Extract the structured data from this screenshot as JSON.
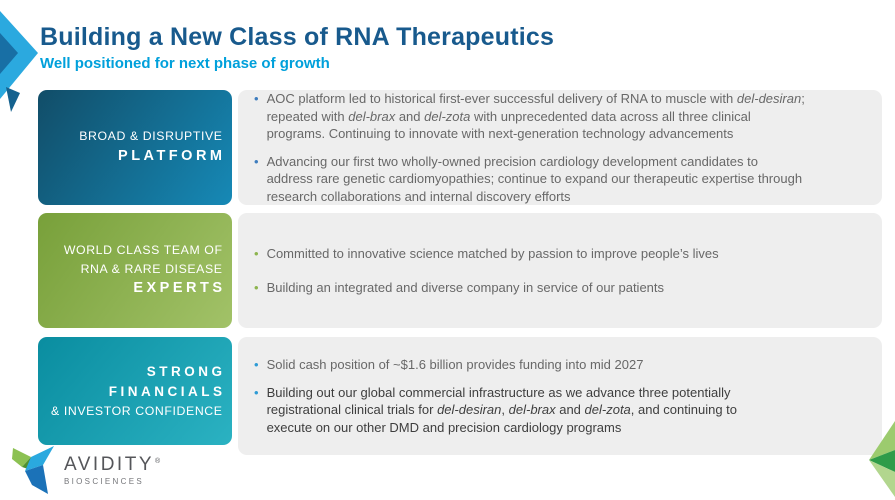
{
  "header": {
    "title": "Building a New Class of RNA Therapeutics",
    "subtitle": "Well positioned for next phase of growth"
  },
  "rows": [
    {
      "label_lines": [
        "BROAD & DISRUPTIVE",
        "PLATFORM"
      ],
      "bullets": [
        {
          "segments": [
            {
              "t": "AOC platform led to historical first-ever successful delivery of RNA to muscle with "
            },
            {
              "t": "del-desiran",
              "i": true
            },
            {
              "t": ";"
            },
            {
              "br": true
            },
            {
              "t": "repeated with "
            },
            {
              "t": "del-brax",
              "i": true
            },
            {
              "t": " and "
            },
            {
              "t": "del-zota",
              "i": true
            },
            {
              "t": " with unprecedented data across all three clinical"
            },
            {
              "br": true
            },
            {
              "t": "programs. Continuing to innovate with next-generation technology advancements"
            }
          ]
        },
        {
          "segments": [
            {
              "t": "Advancing our first two wholly-owned precision cardiology development candidates to"
            },
            {
              "br": true
            },
            {
              "t": "address rare genetic cardiomyopathies; continue to expand our therapeutic expertise through"
            },
            {
              "br": true
            },
            {
              "t": "research collaborations and internal discovery efforts"
            }
          ]
        }
      ]
    },
    {
      "label_lines": [
        "WORLD CLASS TEAM OF",
        "RNA & RARE DISEASE",
        "EXPERTS"
      ],
      "bullets": [
        {
          "segments": [
            {
              "t": "Committed to innovative science matched by passion to improve people’s lives"
            }
          ]
        },
        {
          "segments": [
            {
              "t": "Building an integrated and diverse company in service of our patients"
            }
          ]
        }
      ]
    },
    {
      "label_lines": [
        "STRONG",
        "FINANCIALS",
        "& INVESTOR CONFIDENCE"
      ],
      "bullets": [
        {
          "segments": [
            {
              "t": "Solid cash position of ~$1.6 billion provides funding into mid 2027"
            }
          ]
        },
        {
          "emphasis": true,
          "segments": [
            {
              "t": "Building out our global commercial infrastructure as we advance three potentially"
            },
            {
              "br": true
            },
            {
              "t": "registrational clinical trials for "
            },
            {
              "t": "del-desiran",
              "i": true
            },
            {
              "t": ", "
            },
            {
              "t": "del-brax",
              "i": true
            },
            {
              "t": " and "
            },
            {
              "t": "del-zota",
              "i": true
            },
            {
              "t": ", and continuing to"
            },
            {
              "br": true
            },
            {
              "t": "execute on our other DMD and precision cardiology programs"
            }
          ]
        }
      ]
    }
  ],
  "footer": {
    "brand": "AVIDITY",
    "trademark": "®",
    "sub_brand": "BIOSCIENCES"
  },
  "icons": {
    "bullet_glyph": "•",
    "top_left_decoration": "folded-ribbon-chevron",
    "bottom_right_decoration": "green-ribbon-chevron",
    "logo_mark": "avidity-ribbon-mark"
  },
  "colors": {
    "title": "#185A8D",
    "subtitle": "#00A0DB",
    "panel_bg": "#EEEEEE",
    "body_text": "#686868",
    "emphasis_text": "#3E3E3E",
    "box_platform_gradient": [
      "#114D68",
      "#1689B6"
    ],
    "box_experts_gradient": [
      "#78A03A",
      "#A2C268"
    ],
    "box_financials_gradient": [
      "#0A8DA0",
      "#2BB2C2"
    ],
    "bullet_accents": [
      "#3E7DBE",
      "#8DB44E",
      "#2E9BD5"
    ]
  }
}
